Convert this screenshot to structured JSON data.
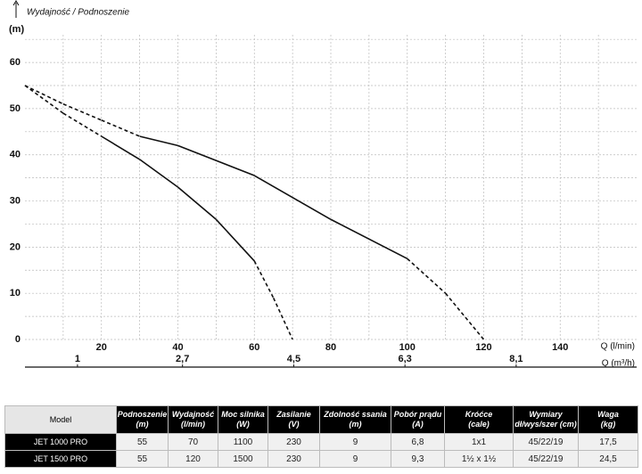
{
  "chart_data": {
    "type": "line",
    "title": "Wydajność / Podnoszenie",
    "y_label": "(m)",
    "x_label": "Q (l/min)",
    "x2_label": "Q (m³/h)",
    "xlim": [
      0,
      160
    ],
    "xticks": [
      20,
      40,
      60,
      80,
      100,
      120,
      140
    ],
    "xminorticks": [
      10,
      30,
      50,
      70,
      90,
      110,
      130,
      150
    ],
    "x2lim": [
      0.15,
      10.05
    ],
    "x2ticks": [
      1,
      {
        "value": 2.7,
        "label": "2,7"
      },
      {
        "value": 4.5,
        "label": "4,5"
      },
      {
        "value": 6.3,
        "label": "6,3"
      },
      {
        "value": 8.1,
        "label": "8,1"
      }
    ],
    "ylim": [
      0,
      66
    ],
    "yticks": [
      0,
      10,
      20,
      30,
      40,
      50,
      60
    ],
    "yminorticks": [
      5,
      15,
      25,
      35,
      45,
      55,
      65
    ],
    "grid": true,
    "series": [
      {
        "color": "#111",
        "x": [
          0,
          10,
          20,
          30,
          40,
          50,
          60,
          65,
          70
        ],
        "values": [
          55,
          49,
          44,
          39,
          33,
          26,
          17,
          9,
          0
        ],
        "segment_styles": [
          "dashed",
          "dashed",
          "solid",
          "solid",
          "solid",
          "solid",
          "dashed",
          "dashed"
        ]
      },
      {
        "color": "#111",
        "x": [
          0,
          10,
          20,
          30,
          40,
          60,
          80,
          100,
          110,
          120
        ],
        "values": [
          55,
          51,
          47.5,
          44,
          42,
          35.5,
          26,
          17.5,
          10,
          0
        ],
        "segment_styles": [
          "dashed",
          "dashed",
          "dashed",
          "solid",
          "solid",
          "solid",
          "solid",
          "dashed",
          "dashed"
        ]
      }
    ]
  },
  "table": {
    "header": [
      [
        "Model"
      ],
      [
        "Podnoszenie",
        "(m)"
      ],
      [
        "Wydajność",
        "(l/min)"
      ],
      [
        "Moc silnika",
        "(W)"
      ],
      [
        "Zasilanie",
        "(V)"
      ],
      [
        "Zdolność ssania",
        "(m)"
      ],
      [
        "Pobór prądu",
        "(A)"
      ],
      [
        "Króćce",
        "(cale)"
      ],
      [
        "Wymiary",
        "dł/wys/szer (cm)"
      ],
      [
        "Waga",
        "(kg)"
      ]
    ],
    "rows": [
      [
        "JET 1000 PRO",
        55,
        70,
        1100,
        230,
        9,
        "6,8",
        "1x1",
        "45/22/19",
        "17,5"
      ],
      [
        "JET 1500 PRO",
        55,
        120,
        1500,
        230,
        9,
        "9,3",
        "1½ x 1½",
        "45/22/19",
        "24,5"
      ]
    ]
  }
}
